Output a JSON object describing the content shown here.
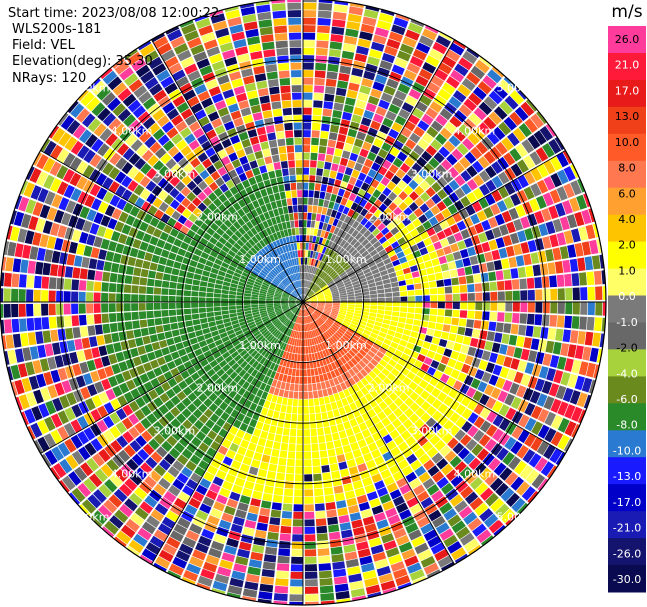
{
  "header": {
    "start_time": "Start time: 2023/08/08 12:00:22",
    "site": "WLS200s-181",
    "field": "Field: VEL",
    "elevation": "Elevation(deg): 35.30",
    "nrays": "NRays: 120"
  },
  "chart_data": {
    "type": "heatmap",
    "subtype": "polar-ppi",
    "field": "VEL",
    "nrays": 120,
    "range_rings_km": [
      1.0,
      2.0,
      3.0,
      4.0,
      5.0
    ],
    "ring_labels": [
      "1.00km",
      "2.00km",
      "3.00km",
      "4.00km",
      "5.00km"
    ],
    "max_range_km": 5.0,
    "grid": true,
    "colorbar": {
      "unit": "m/s",
      "placement": "right",
      "ticks": [
        "26.0",
        "21.0",
        "17.0",
        "13.0",
        "10.0",
        "8.0",
        "6.0",
        "4.0",
        "2.0",
        "1.0",
        "0.0",
        "-1.0",
        "-2.0",
        "-4.0",
        "-6.0",
        "-8.0",
        "-10.0",
        "-13.0",
        "-17.0",
        "-21.0",
        "-26.0",
        "-30.0"
      ],
      "colors": [
        "#ff3c9c",
        "#ff1a3a",
        "#e81a1a",
        "#f0401a",
        "#ff5a28",
        "#ff7850",
        "#ffa030",
        "#ffc400",
        "#ffff00",
        "#ffff66",
        "#7a7a7a",
        "#686868",
        "#a8d23c",
        "#6a8a1e",
        "#2a8a2a",
        "#2a7ad2",
        "#1a1aff",
        "#0000c8",
        "#1a1ab4",
        "#14146e",
        "#0a0a50"
      ]
    },
    "regions": [
      {
        "sector": "north-inner",
        "km_range": [
          0,
          1.2
        ],
        "color": "#1a1aff",
        "label": "mixed"
      },
      {
        "sector": "west-northwest",
        "km_range": [
          0,
          2.3
        ],
        "color": "#2a8a2a",
        "label": "-6.0"
      },
      {
        "sector": "northwest-inner",
        "km_range": [
          0.2,
          1.1
        ],
        "color": "#2a7ad2",
        "label": "-8.0"
      },
      {
        "sector": "south-southeast",
        "km_range": [
          0,
          1.3
        ],
        "color": "#ff5a28",
        "label": "10.0"
      },
      {
        "sector": "south-to-east",
        "km_range": [
          0.3,
          2.2
        ],
        "color": "#ffff00",
        "label": "2.0"
      },
      {
        "sector": "east-northeast",
        "km_range": [
          0.4,
          1.5
        ],
        "color": "#7a7a7a",
        "label": "0.0"
      }
    ]
  }
}
